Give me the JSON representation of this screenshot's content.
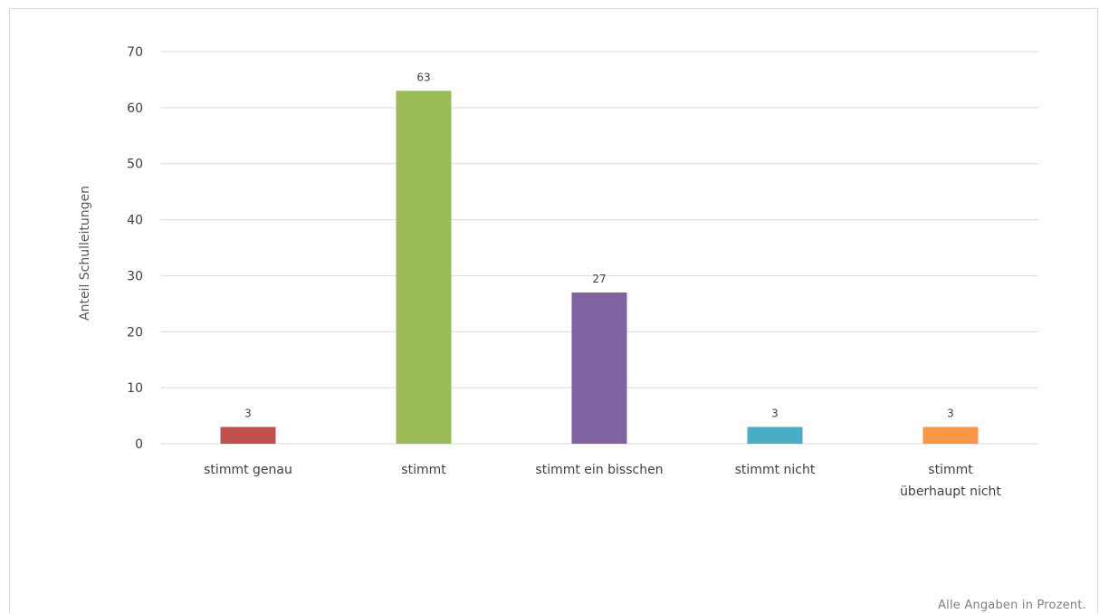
{
  "chart_data": {
    "type": "bar",
    "title": "",
    "xlabel": "",
    "ylabel": "Anteil Schulleitungen",
    "ylim": [
      0,
      70
    ],
    "yticks": [
      0,
      10,
      20,
      30,
      40,
      50,
      60,
      70
    ],
    "grid": true,
    "legend": "none",
    "categories": [
      [
        "stimmt genau"
      ],
      [
        "stimmt"
      ],
      [
        "stimmt ein bisschen"
      ],
      [
        "stimmt nicht"
      ],
      [
        "stimmt",
        "überhaupt nicht"
      ]
    ],
    "values": [
      3,
      63,
      27,
      3,
      3
    ],
    "colors": [
      "#c0504d",
      "#9bbb59",
      "#8064a2",
      "#4bacc6",
      "#f79646"
    ],
    "data_labels": true
  },
  "footnote": "Alle Angaben in Prozent."
}
